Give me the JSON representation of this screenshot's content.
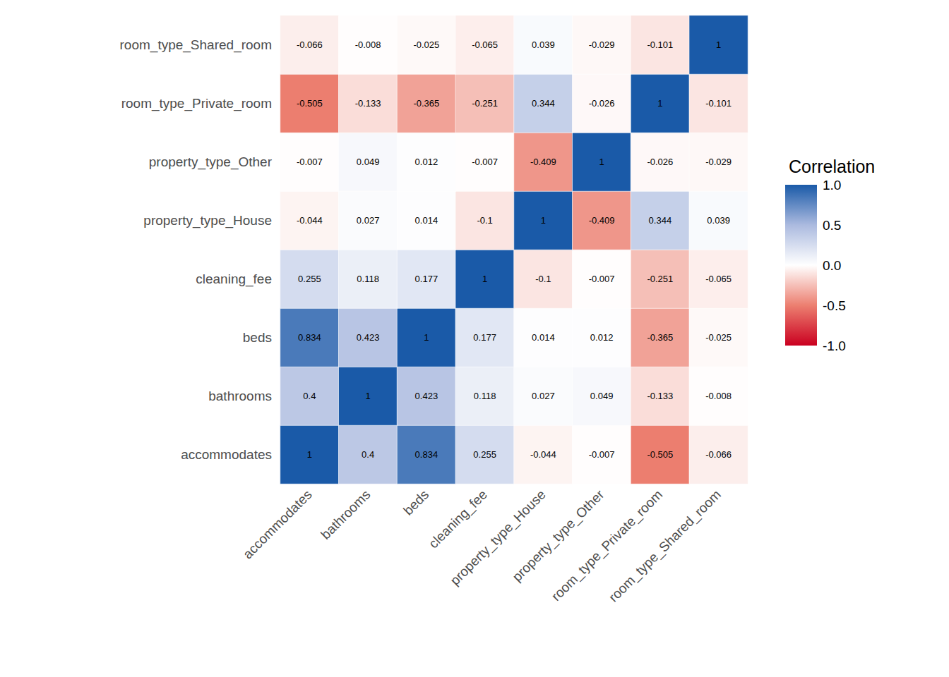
{
  "chart_data": {
    "type": "heatmap",
    "categories": [
      "accommodates",
      "bathrooms",
      "beds",
      "cleaning_fee",
      "property_type_House",
      "property_type_Other",
      "room_type_Private_room",
      "room_type_Shared_room"
    ],
    "matrix": [
      [
        1,
        0.4,
        0.834,
        0.255,
        -0.044,
        -0.007,
        -0.505,
        -0.066
      ],
      [
        0.4,
        1,
        0.423,
        0.118,
        0.027,
        0.049,
        -0.133,
        -0.008
      ],
      [
        0.834,
        0.423,
        1,
        0.177,
        0.014,
        0.012,
        -0.365,
        -0.025
      ],
      [
        0.255,
        0.118,
        0.177,
        1,
        -0.1,
        -0.007,
        -0.251,
        -0.065
      ],
      [
        -0.044,
        0.027,
        0.014,
        -0.1,
        1,
        -0.409,
        0.344,
        0.039
      ],
      [
        -0.007,
        0.049,
        0.012,
        -0.007,
        -0.409,
        1,
        -0.026,
        -0.029
      ],
      [
        -0.505,
        -0.133,
        -0.365,
        -0.251,
        0.344,
        -0.026,
        1,
        -0.101
      ],
      [
        -0.066,
        -0.008,
        -0.025,
        -0.065,
        0.039,
        -0.029,
        -0.101,
        1
      ]
    ],
    "data_labels": true,
    "colorbar_title": "Correlation",
    "colorbar_range": [
      -1,
      1
    ],
    "colorbar_ticks": [
      {
        "value": -1,
        "label": "-1.0"
      },
      -0.5,
      {
        "value": 0,
        "label": "0.0"
      },
      0.5,
      {
        "value": 1,
        "label": "1.0"
      }
    ]
  }
}
